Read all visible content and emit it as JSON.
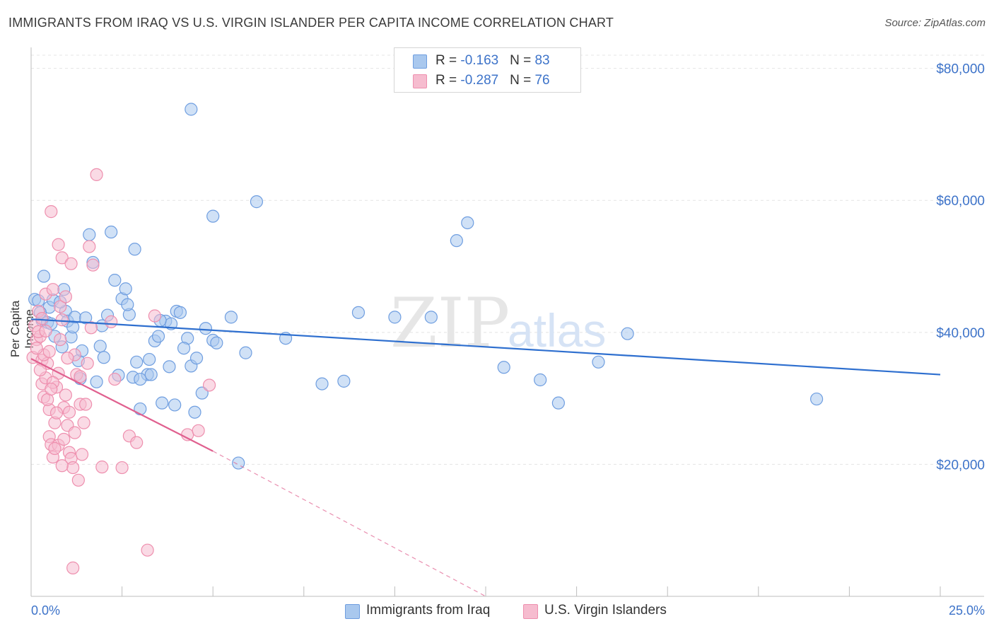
{
  "title": "IMMIGRANTS FROM IRAQ VS U.S. VIRGIN ISLANDER PER CAPITA INCOME CORRELATION CHART",
  "source": "Source: ZipAtlas.com",
  "watermark": {
    "zip": "ZIP",
    "atlas": "atlas"
  },
  "legend": {
    "rows": [
      {
        "r_label": "R = ",
        "r_value": "-0.163",
        "n_label": "N = ",
        "n_value": "83"
      },
      {
        "r_label": "R = ",
        "r_value": "-0.287",
        "n_label": "N = ",
        "n_value": "76"
      }
    ]
  },
  "colors": {
    "blue_fill": "#a9c8ee",
    "blue_stroke": "#6f9ee0",
    "blue_line": "#2e6fcf",
    "pink_fill": "#f6bccf",
    "pink_stroke": "#ee8fae",
    "pink_line": "#e0608f",
    "axis_text": "#3d73c9",
    "grid": "#e4e4e4"
  },
  "chart_data": {
    "type": "scatter",
    "title": "IMMIGRANTS FROM IRAQ VS U.S. VIRGIN ISLANDER PER CAPITA INCOME CORRELATION CHART",
    "xlabel": "",
    "ylabel": "Per Capita Income",
    "xlim": [
      0,
      25
    ],
    "ylim": [
      0,
      82000
    ],
    "x_tick_labels": {
      "left": "0.0%",
      "right": "25.0%"
    },
    "y_ticks": [
      20000,
      40000,
      60000,
      80000
    ],
    "y_tick_labels": [
      "$20,000",
      "$40,000",
      "$60,000",
      "$80,000"
    ],
    "series": [
      {
        "name": "Immigrants from Iraq",
        "color": "blue",
        "r": -0.163,
        "n": 83,
        "trend": {
          "x": [
            0,
            25
          ],
          "y": [
            42000,
            33600
          ],
          "dashed_to": null
        },
        "points": [
          [
            0.1,
            45000
          ],
          [
            0.2,
            44800
          ],
          [
            0.3,
            41800
          ],
          [
            0.35,
            48500
          ],
          [
            0.45,
            41500
          ],
          [
            0.5,
            43800
          ],
          [
            0.55,
            41300
          ],
          [
            0.6,
            44900
          ],
          [
            0.65,
            39400
          ],
          [
            0.85,
            37800
          ],
          [
            0.9,
            46500
          ],
          [
            0.95,
            43200
          ],
          [
            1.0,
            41700
          ],
          [
            1.1,
            39300
          ],
          [
            1.2,
            42300
          ],
          [
            1.3,
            35700
          ],
          [
            1.35,
            33000
          ],
          [
            1.4,
            37200
          ],
          [
            1.6,
            54800
          ],
          [
            1.7,
            50600
          ],
          [
            1.8,
            32500
          ],
          [
            1.9,
            37900
          ],
          [
            1.95,
            41000
          ],
          [
            2.1,
            42600
          ],
          [
            2.2,
            55200
          ],
          [
            2.3,
            47900
          ],
          [
            2.4,
            33500
          ],
          [
            2.5,
            45100
          ],
          [
            2.6,
            46600
          ],
          [
            2.7,
            42700
          ],
          [
            2.8,
            33200
          ],
          [
            2.85,
            52600
          ],
          [
            2.9,
            35500
          ],
          [
            3.0,
            28400
          ],
          [
            3.2,
            33600
          ],
          [
            3.25,
            35900
          ],
          [
            3.3,
            33600
          ],
          [
            3.4,
            38700
          ],
          [
            3.5,
            39400
          ],
          [
            3.6,
            29300
          ],
          [
            3.7,
            41700
          ],
          [
            3.8,
            34800
          ],
          [
            3.85,
            41300
          ],
          [
            3.95,
            29000
          ],
          [
            4.0,
            43200
          ],
          [
            4.1,
            43000
          ],
          [
            4.3,
            39100
          ],
          [
            4.4,
            34900
          ],
          [
            4.5,
            27900
          ],
          [
            4.55,
            36100
          ],
          [
            4.7,
            30800
          ],
          [
            4.8,
            40600
          ],
          [
            5.0,
            38800
          ],
          [
            5.1,
            38400
          ],
          [
            5.0,
            57600
          ],
          [
            5.5,
            42300
          ],
          [
            5.9,
            36900
          ],
          [
            6.2,
            59800
          ],
          [
            5.7,
            20200
          ],
          [
            4.4,
            73800
          ],
          [
            7.0,
            39100
          ],
          [
            8.0,
            32200
          ],
          [
            8.6,
            32600
          ],
          [
            9.0,
            43000
          ],
          [
            10.0,
            42300
          ],
          [
            11.0,
            42300
          ],
          [
            11.7,
            53900
          ],
          [
            12.0,
            56600
          ],
          [
            13.0,
            34700
          ],
          [
            14.0,
            32800
          ],
          [
            14.5,
            29300
          ],
          [
            15.6,
            35500
          ],
          [
            16.4,
            39800
          ],
          [
            21.6,
            29900
          ],
          [
            0.25,
            43000
          ],
          [
            1.15,
            40800
          ],
          [
            2.0,
            36200
          ],
          [
            3.0,
            32900
          ],
          [
            0.8,
            44600
          ],
          [
            1.5,
            42200
          ],
          [
            2.65,
            44200
          ],
          [
            3.55,
            41800
          ],
          [
            4.2,
            37600
          ]
        ]
      },
      {
        "name": "U.S. Virgin Islanders",
        "color": "pink",
        "r": -0.287,
        "n": 76,
        "trend": {
          "x": [
            0,
            5.0
          ],
          "y": [
            36000,
            22000
          ],
          "dashed_to": {
            "x": 12.5,
            "y": 0
          }
        },
        "points": [
          [
            0.05,
            36200
          ],
          [
            0.1,
            41000
          ],
          [
            0.15,
            38900
          ],
          [
            0.2,
            43200
          ],
          [
            0.25,
            39400
          ],
          [
            0.3,
            35800
          ],
          [
            0.3,
            32200
          ],
          [
            0.35,
            30200
          ],
          [
            0.4,
            33100
          ],
          [
            0.45,
            35300
          ],
          [
            0.5,
            28300
          ],
          [
            0.5,
            24200
          ],
          [
            0.55,
            23000
          ],
          [
            0.6,
            21100
          ],
          [
            0.65,
            26300
          ],
          [
            0.7,
            31700
          ],
          [
            0.75,
            33800
          ],
          [
            0.8,
            43900
          ],
          [
            0.8,
            38900
          ],
          [
            0.85,
            41900
          ],
          [
            0.9,
            28600
          ],
          [
            0.95,
            30500
          ],
          [
            1.0,
            25900
          ],
          [
            1.05,
            21800
          ],
          [
            1.1,
            20900
          ],
          [
            1.15,
            19500
          ],
          [
            1.2,
            36600
          ],
          [
            1.3,
            17600
          ],
          [
            1.35,
            29100
          ],
          [
            1.4,
            21500
          ],
          [
            1.5,
            29100
          ],
          [
            1.55,
            35300
          ],
          [
            1.6,
            53000
          ],
          [
            1.7,
            50200
          ],
          [
            1.8,
            63900
          ],
          [
            1.95,
            19600
          ],
          [
            2.2,
            41600
          ],
          [
            2.3,
            32900
          ],
          [
            2.5,
            19500
          ],
          [
            2.7,
            24300
          ],
          [
            2.9,
            23300
          ],
          [
            3.2,
            7000
          ],
          [
            3.4,
            42500
          ],
          [
            4.3,
            24500
          ],
          [
            4.6,
            25100
          ],
          [
            4.9,
            32000
          ],
          [
            0.55,
            58300
          ],
          [
            0.75,
            53300
          ],
          [
            0.85,
            51300
          ],
          [
            1.1,
            50400
          ],
          [
            0.4,
            45800
          ],
          [
            0.6,
            46500
          ],
          [
            0.95,
            45400
          ],
          [
            0.2,
            40100
          ],
          [
            0.35,
            36600
          ],
          [
            0.6,
            32400
          ],
          [
            0.75,
            22900
          ],
          [
            0.9,
            23800
          ],
          [
            1.2,
            24800
          ],
          [
            1.45,
            26300
          ],
          [
            0.25,
            34300
          ],
          [
            0.45,
            29800
          ],
          [
            0.7,
            27800
          ],
          [
            1.0,
            36100
          ],
          [
            1.25,
            33600
          ],
          [
            0.15,
            37600
          ],
          [
            0.5,
            37100
          ],
          [
            1.15,
            4300
          ],
          [
            0.3,
            42100
          ],
          [
            1.65,
            40700
          ],
          [
            0.65,
            22400
          ],
          [
            0.85,
            19800
          ],
          [
            1.05,
            27900
          ],
          [
            1.35,
            33300
          ],
          [
            0.55,
            31400
          ],
          [
            0.4,
            40200
          ]
        ]
      }
    ]
  },
  "bottom_legend": [
    {
      "label": "Immigrants from Iraq",
      "color": "blue"
    },
    {
      "label": "U.S. Virgin Islanders",
      "color": "pink"
    }
  ]
}
